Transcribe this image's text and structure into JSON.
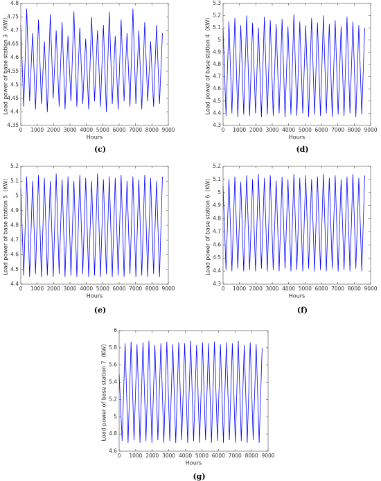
{
  "chart_data": [
    {
      "type": "line",
      "caption": "(c)",
      "ylabel": "Load power of base station 3（KW）",
      "xlabel": "Hours",
      "color": "#0000ff",
      "x": [
        0,
        180,
        360,
        540,
        720,
        900,
        1080,
        1260,
        1440,
        1620,
        1800,
        1980,
        2160,
        2340,
        2520,
        2700,
        2880,
        3060,
        3240,
        3420,
        3600,
        3780,
        3960,
        4140,
        4320,
        4500,
        4680,
        4860,
        5040,
        5220,
        5400,
        5580,
        5760,
        5940,
        6120,
        6300,
        6480,
        6660,
        6840,
        7020,
        7200,
        7380,
        7560,
        7740,
        7920,
        8100,
        8280,
        8460,
        8640
      ],
      "values": [
        4.72,
        4.42,
        4.78,
        4.44,
        4.69,
        4.41,
        4.74,
        4.43,
        4.66,
        4.4,
        4.76,
        4.45,
        4.7,
        4.42,
        4.73,
        4.41,
        4.68,
        4.44,
        4.77,
        4.42,
        4.71,
        4.43,
        4.67,
        4.41,
        4.75,
        4.44,
        4.7,
        4.42,
        4.72,
        4.4,
        4.77,
        4.43,
        4.68,
        4.41,
        4.74,
        4.44,
        4.69,
        4.42,
        4.78,
        4.43,
        4.7,
        4.41,
        4.73,
        4.44,
        4.66,
        4.42,
        4.72,
        4.43,
        4.69
      ],
      "xlim": [
        0,
        9000
      ],
      "xticks": [
        0,
        1000,
        2000,
        3000,
        4000,
        5000,
        6000,
        7000,
        8000,
        9000
      ],
      "ylim": [
        4.35,
        4.8
      ],
      "yticks": [
        4.35,
        4.4,
        4.45,
        4.5,
        4.55,
        4.6,
        4.65,
        4.7,
        4.75,
        4.8
      ]
    },
    {
      "type": "line",
      "caption": "(d)",
      "ylabel": "Load power of base station 4（KW）",
      "xlabel": "Hours",
      "color": "#0000ff",
      "x": [
        0,
        180,
        360,
        540,
        720,
        900,
        1080,
        1260,
        1440,
        1620,
        1800,
        1980,
        2160,
        2340,
        2520,
        2700,
        2880,
        3060,
        3240,
        3420,
        3600,
        3780,
        3960,
        4140,
        4320,
        4500,
        4680,
        4860,
        5040,
        5220,
        5400,
        5580,
        5760,
        5940,
        6120,
        6300,
        6480,
        6660,
        6840,
        7020,
        7200,
        7380,
        7560,
        7740,
        7920,
        8100,
        8280,
        8460,
        8640
      ],
      "values": [
        5.1,
        4.38,
        5.15,
        4.4,
        5.18,
        4.37,
        5.12,
        4.39,
        5.2,
        4.38,
        5.14,
        4.4,
        5.1,
        4.37,
        5.19,
        4.39,
        5.16,
        4.38,
        5.13,
        4.4,
        5.17,
        4.37,
        5.11,
        4.39,
        5.21,
        4.38,
        5.15,
        4.4,
        5.12,
        4.37,
        5.18,
        4.39,
        5.14,
        4.38,
        5.2,
        4.4,
        5.13,
        4.37,
        5.16,
        4.39,
        5.11,
        4.38,
        5.19,
        4.4,
        5.15,
        4.37,
        5.12,
        4.39,
        5.1
      ],
      "xlim": [
        0,
        9000
      ],
      "xticks": [
        0,
        1000,
        2000,
        3000,
        4000,
        5000,
        6000,
        7000,
        8000,
        9000
      ],
      "ylim": [
        4.3,
        5.3
      ],
      "yticks": [
        4.3,
        4.4,
        4.5,
        4.6,
        4.7,
        4.8,
        4.9,
        5,
        5.1,
        5.2,
        5.3
      ]
    },
    {
      "type": "line",
      "caption": "(e)",
      "ylabel": "Load power of base station 5（KW）",
      "xlabel": "Hours",
      "color": "#0000ff",
      "x": [
        0,
        180,
        360,
        540,
        720,
        900,
        1080,
        1260,
        1440,
        1620,
        1800,
        1980,
        2160,
        2340,
        2520,
        2700,
        2880,
        3060,
        3240,
        3420,
        3600,
        3780,
        3960,
        4140,
        4320,
        4500,
        4680,
        4860,
        5040,
        5220,
        5400,
        5580,
        5760,
        5940,
        6120,
        6300,
        6480,
        6660,
        6840,
        7020,
        7200,
        7380,
        7560,
        7740,
        7920,
        8100,
        8280,
        8460,
        8640
      ],
      "values": [
        5.05,
        4.46,
        5.13,
        4.45,
        5.1,
        4.47,
        5.14,
        4.45,
        5.12,
        4.46,
        5.1,
        4.45,
        5.15,
        4.47,
        5.11,
        4.45,
        5.13,
        4.46,
        5.1,
        4.45,
        5.14,
        4.47,
        5.12,
        4.45,
        5.1,
        4.46,
        5.15,
        4.45,
        5.11,
        4.47,
        5.13,
        4.45,
        5.12,
        4.46,
        5.14,
        4.45,
        5.1,
        4.47,
        5.13,
        4.45,
        5.11,
        4.46,
        5.14,
        4.45,
        5.12,
        4.47,
        5.1,
        4.45,
        5.13
      ],
      "xlim": [
        0,
        9000
      ],
      "xticks": [
        0,
        1000,
        2000,
        3000,
        4000,
        5000,
        6000,
        7000,
        8000,
        9000
      ],
      "ylim": [
        4.4,
        5.2
      ],
      "yticks": [
        4.4,
        4.5,
        4.6,
        4.7,
        4.8,
        4.9,
        5,
        5.1,
        5.2
      ]
    },
    {
      "type": "line",
      "caption": "(f)",
      "ylabel": "Load power of base station 6（KW）",
      "xlabel": "Hours",
      "color": "#0000ff",
      "x": [
        0,
        180,
        360,
        540,
        720,
        900,
        1080,
        1260,
        1440,
        1620,
        1800,
        1980,
        2160,
        2340,
        2520,
        2700,
        2880,
        3060,
        3240,
        3420,
        3600,
        3780,
        3960,
        4140,
        4320,
        4500,
        4680,
        4860,
        5040,
        5220,
        5400,
        5580,
        5760,
        5940,
        6120,
        6300,
        6480,
        6660,
        6840,
        7020,
        7200,
        7380,
        7560,
        7740,
        7920,
        8100,
        8280,
        8460,
        8640
      ],
      "values": [
        5.05,
        4.41,
        5.1,
        4.4,
        5.12,
        4.42,
        5.08,
        4.4,
        5.13,
        4.41,
        5.1,
        4.4,
        5.14,
        4.42,
        5.11,
        4.4,
        5.13,
        4.41,
        5.09,
        4.4,
        5.12,
        4.42,
        5.1,
        4.4,
        5.14,
        4.41,
        5.11,
        4.4,
        5.13,
        4.42,
        5.1,
        4.4,
        5.12,
        4.41,
        5.14,
        4.4,
        5.11,
        4.42,
        5.13,
        4.4,
        5.1,
        4.41,
        5.12,
        4.4,
        5.14,
        4.42,
        5.11,
        4.4,
        5.13
      ],
      "xlim": [
        0,
        9000
      ],
      "xticks": [
        0,
        1000,
        2000,
        3000,
        4000,
        5000,
        6000,
        7000,
        8000,
        9000
      ],
      "ylim": [
        4.3,
        5.2
      ],
      "yticks": [
        4.3,
        4.4,
        4.5,
        4.6,
        4.7,
        4.8,
        4.9,
        5,
        5.1,
        5.2
      ]
    },
    {
      "type": "line",
      "caption": "(g)",
      "ylabel": "Load power of base station 7（KW）",
      "xlabel": "Hours",
      "color": "#0000ff",
      "x": [
        0,
        180,
        360,
        540,
        720,
        900,
        1080,
        1260,
        1440,
        1620,
        1800,
        1980,
        2160,
        2340,
        2520,
        2700,
        2880,
        3060,
        3240,
        3420,
        3600,
        3780,
        3960,
        4140,
        4320,
        4500,
        4680,
        4860,
        5040,
        5220,
        5400,
        5580,
        5760,
        5940,
        6120,
        6300,
        6480,
        6660,
        6840,
        7020,
        7200,
        7380,
        7560,
        7740,
        7920,
        8100,
        8280,
        8460,
        8640
      ],
      "values": [
        5.5,
        4.72,
        5.85,
        4.7,
        5.87,
        4.73,
        5.84,
        4.7,
        5.86,
        4.72,
        5.88,
        4.7,
        5.83,
        4.73,
        5.85,
        4.7,
        5.87,
        4.72,
        5.84,
        4.7,
        5.86,
        4.73,
        5.85,
        4.7,
        5.88,
        4.72,
        5.83,
        4.7,
        5.86,
        4.73,
        5.85,
        4.7,
        5.87,
        4.72,
        5.84,
        4.7,
        5.86,
        4.73,
        5.85,
        4.7,
        5.88,
        4.72,
        5.83,
        4.7,
        5.86,
        4.73,
        5.84,
        4.7,
        5.8
      ],
      "xlim": [
        0,
        9000
      ],
      "xticks": [
        0,
        1000,
        2000,
        3000,
        4000,
        5000,
        6000,
        7000,
        8000,
        9000
      ],
      "ylim": [
        4.6,
        6
      ],
      "yticks": [
        4.6,
        4.8,
        5,
        5.2,
        5.4,
        5.6,
        5.8,
        6
      ]
    }
  ]
}
